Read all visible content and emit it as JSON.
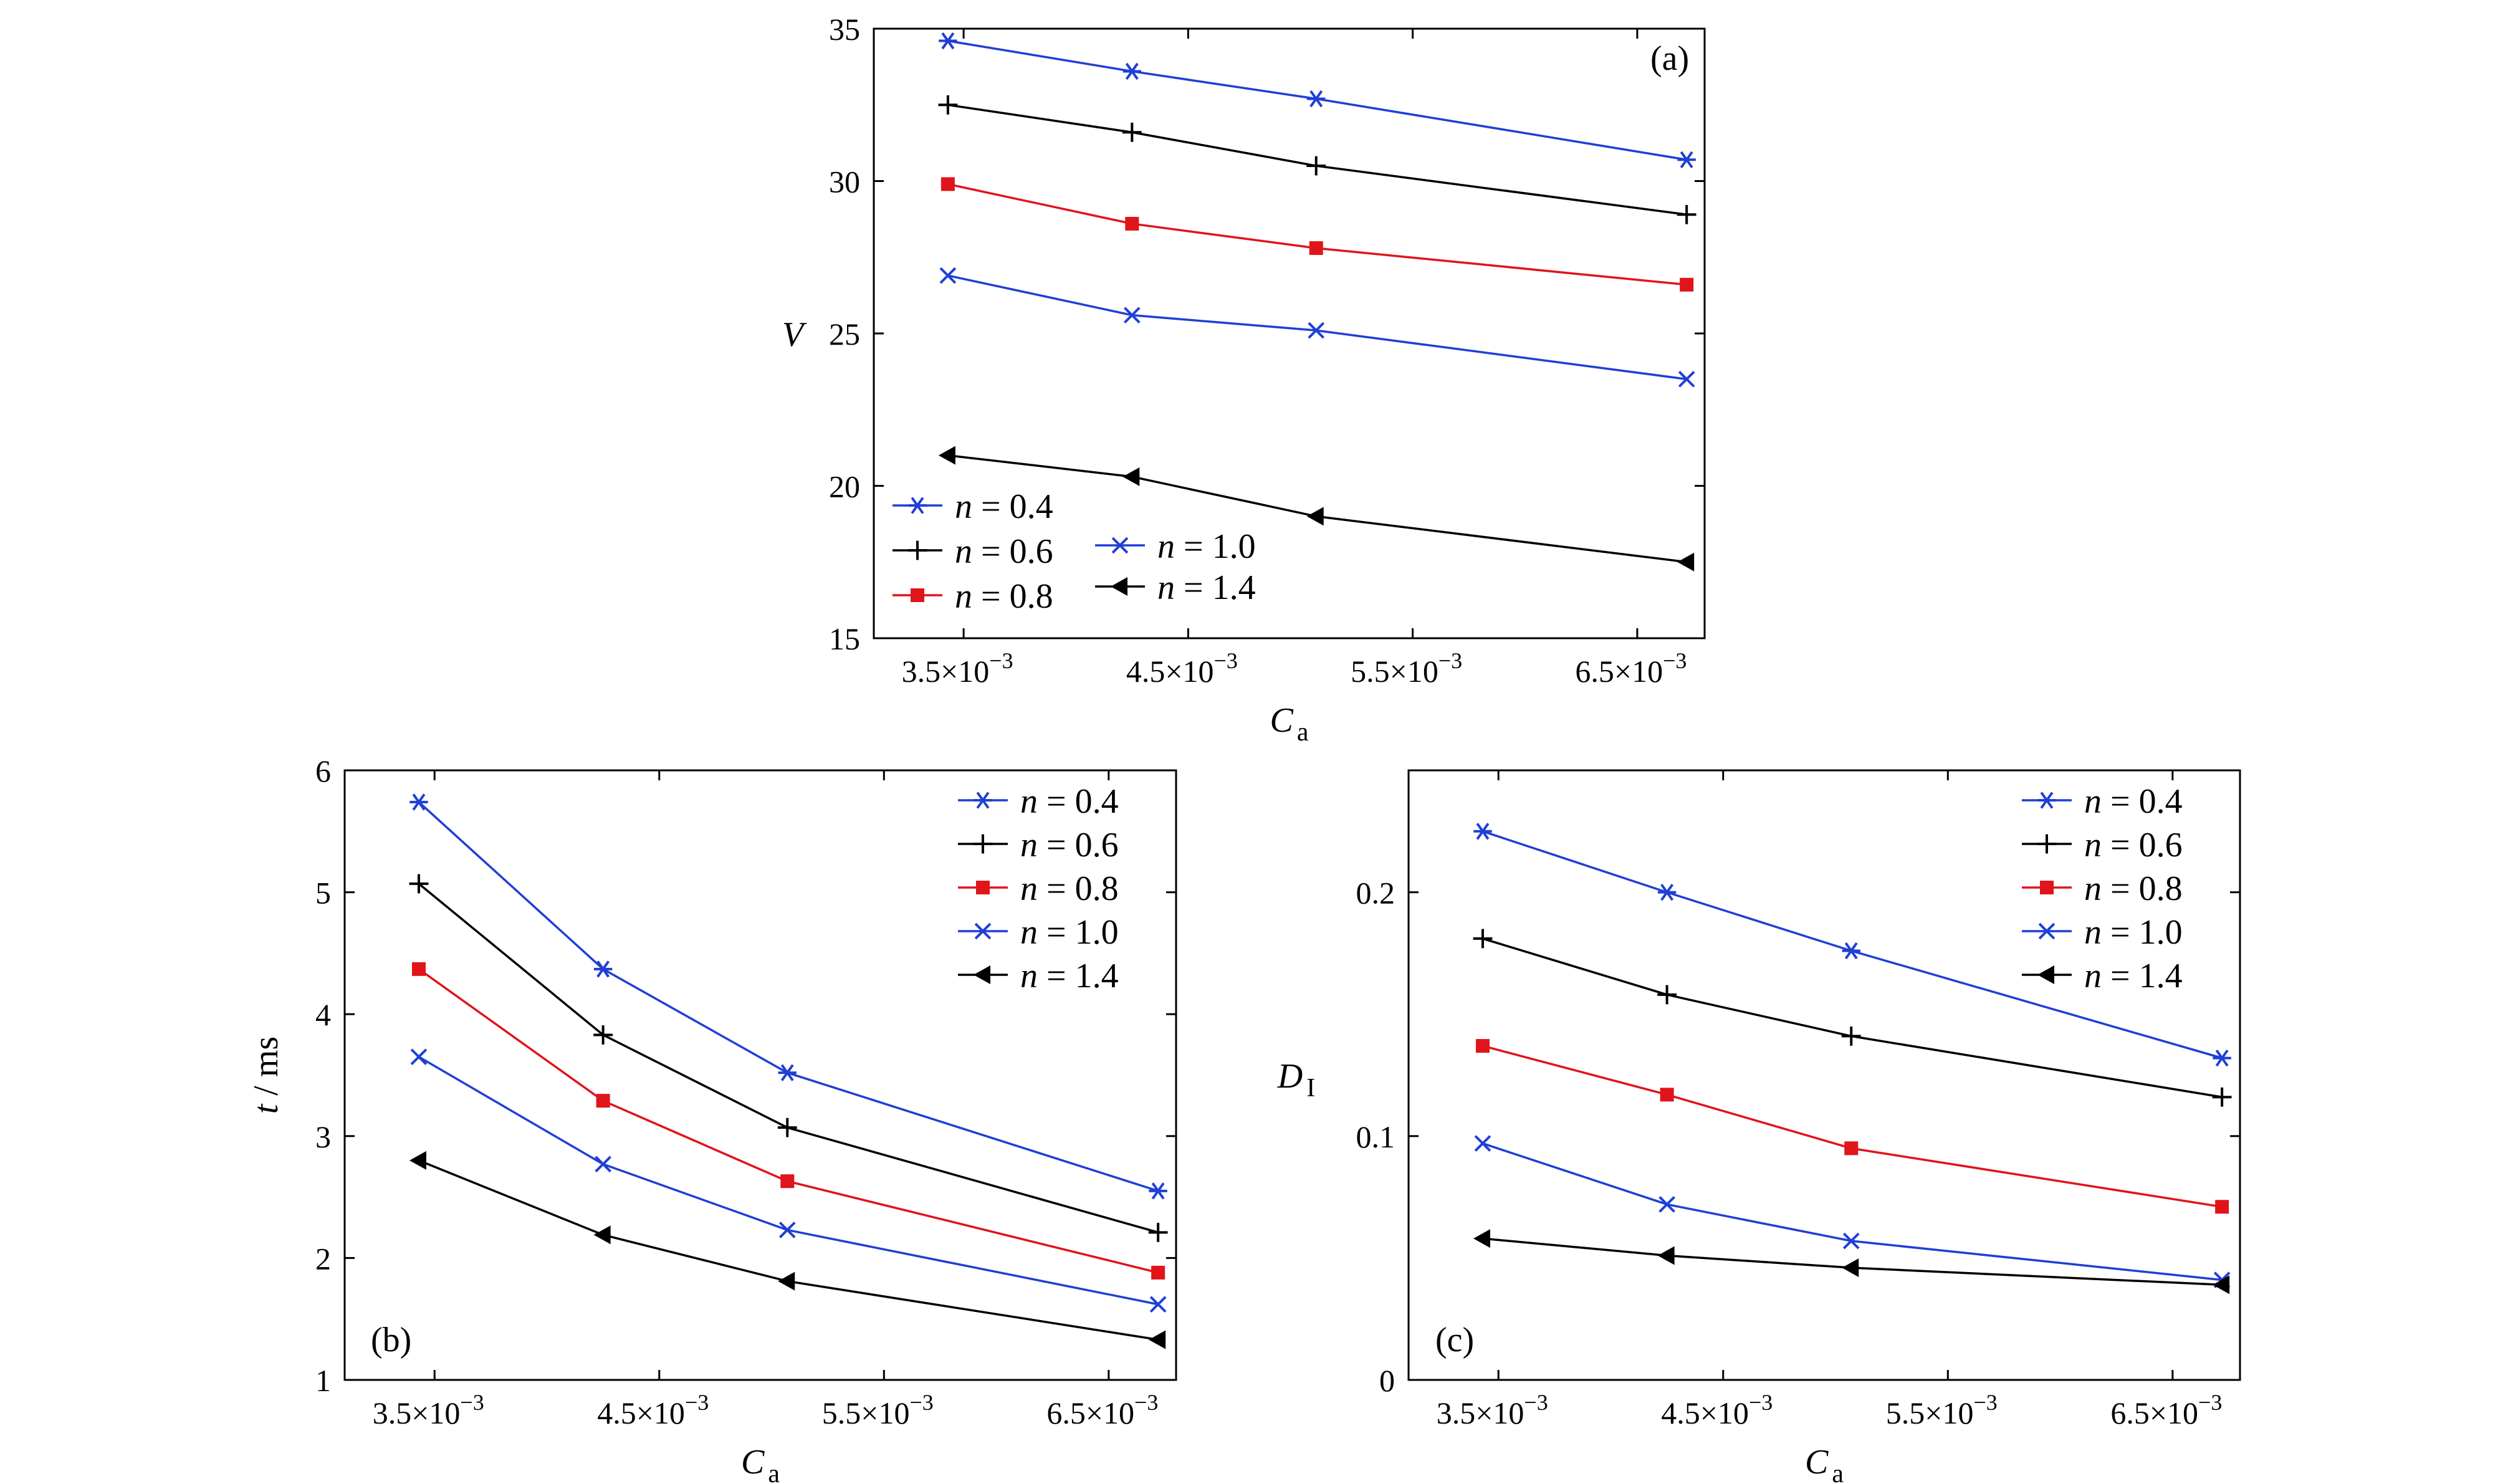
{
  "series_names": [
    "n = 0.4",
    "n = 0.6",
    "n = 0.8",
    "n = 1.0",
    "n = 1.4"
  ],
  "series_style": [
    {
      "color": "#1f3fd6",
      "marker": "asterisk"
    },
    {
      "color": "#000000",
      "marker": "plus"
    },
    {
      "color": "#e0141b",
      "marker": "square"
    },
    {
      "color": "#1f3fd6",
      "marker": "x"
    },
    {
      "color": "#000000",
      "marker": "triangle-left"
    }
  ],
  "x_tick_labels": [
    "3.5×10",
    "4.5×10",
    "5.5×10",
    "6.5×10"
  ],
  "x_tick_exponent": "−3",
  "chart_data": [
    {
      "type": "line",
      "panel": "(a)",
      "xlabel": "C",
      "xlabel_sub": "a",
      "ylabel": "V",
      "ylabel_sub": "",
      "x": [
        0.00343,
        0.00425,
        0.00507,
        0.00672
      ],
      "xlim": [
        0.0031,
        0.0068
      ],
      "x_ticks": [
        0.0035,
        0.0045,
        0.0055,
        0.0065
      ],
      "ylim": [
        15,
        35
      ],
      "y_ticks": [
        15,
        20,
        25,
        30,
        35
      ],
      "y_tick_labels": [
        "15",
        "20",
        "25",
        "30",
        "35"
      ],
      "legend": "bottom-left, two columns",
      "series": [
        {
          "name": "n = 0.4",
          "values": [
            34.6,
            33.6,
            32.7,
            30.7
          ]
        },
        {
          "name": "n = 0.6",
          "values": [
            32.5,
            31.6,
            30.5,
            28.9
          ]
        },
        {
          "name": "n = 0.8",
          "values": [
            29.9,
            28.6,
            27.8,
            26.6
          ]
        },
        {
          "name": "n = 1.0",
          "values": [
            26.9,
            25.6,
            25.1,
            23.5
          ]
        },
        {
          "name": "n = 1.4",
          "values": [
            21.0,
            20.3,
            19.0,
            17.5
          ]
        }
      ]
    },
    {
      "type": "line",
      "panel": "(b)",
      "xlabel": "C",
      "xlabel_sub": "a",
      "ylabel": "t / ms",
      "ylabel_sub": "",
      "x": [
        0.00343,
        0.00425,
        0.00507,
        0.00672
      ],
      "xlim": [
        0.0031,
        0.0068
      ],
      "x_ticks": [
        0.0035,
        0.0045,
        0.0055,
        0.0065
      ],
      "ylim": [
        1,
        6
      ],
      "y_ticks": [
        1,
        2,
        3,
        4,
        5,
        6
      ],
      "y_tick_labels": [
        "1",
        "2",
        "3",
        "4",
        "5",
        "6"
      ],
      "legend": "top-right",
      "series": [
        {
          "name": "n = 0.4",
          "values": [
            5.74,
            4.37,
            3.52,
            2.55
          ]
        },
        {
          "name": "n = 0.6",
          "values": [
            5.07,
            3.83,
            3.07,
            2.21
          ]
        },
        {
          "name": "n = 0.8",
          "values": [
            4.37,
            3.29,
            2.63,
            1.88
          ]
        },
        {
          "name": "n = 1.0",
          "values": [
            3.65,
            2.77,
            2.23,
            1.62
          ]
        },
        {
          "name": "n = 1.4",
          "values": [
            2.8,
            2.19,
            1.81,
            1.33
          ]
        }
      ]
    },
    {
      "type": "line",
      "panel": "(c)",
      "xlabel": "C",
      "xlabel_sub": "a",
      "ylabel": "D",
      "ylabel_sub": "I",
      "x": [
        0.00343,
        0.00425,
        0.00507,
        0.00672
      ],
      "xlim": [
        0.0031,
        0.0068
      ],
      "x_ticks": [
        0.0035,
        0.0045,
        0.0055,
        0.0065
      ],
      "ylim": [
        0,
        0.25
      ],
      "y_ticks": [
        0,
        0.1,
        0.2
      ],
      "y_tick_labels": [
        "0",
        "0.1",
        "0.2"
      ],
      "legend": "top-right",
      "series": [
        {
          "name": "n = 0.4",
          "values": [
            0.225,
            0.2,
            0.176,
            0.132
          ]
        },
        {
          "name": "n = 0.6",
          "values": [
            0.181,
            0.158,
            0.141,
            0.116
          ]
        },
        {
          "name": "n = 0.8",
          "values": [
            0.137,
            0.117,
            0.095,
            0.071
          ]
        },
        {
          "name": "n = 1.0",
          "values": [
            0.097,
            0.072,
            0.057,
            0.041
          ]
        },
        {
          "name": "n = 1.4",
          "values": [
            0.058,
            0.051,
            0.046,
            0.039
          ]
        }
      ]
    }
  ]
}
